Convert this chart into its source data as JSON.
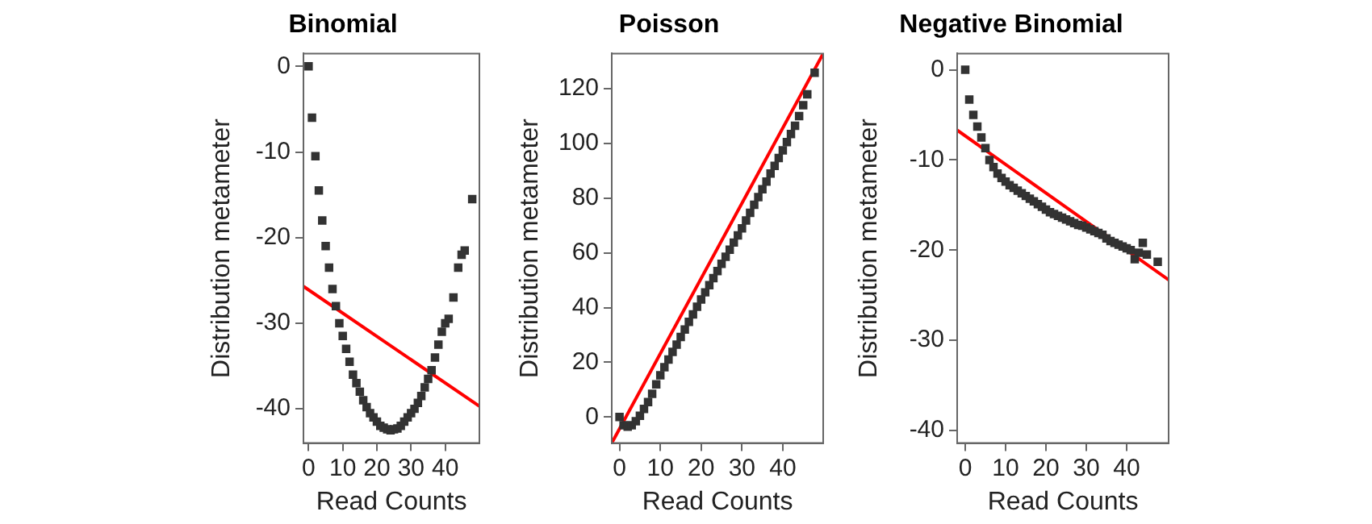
{
  "chart_data": [
    {
      "type": "scatter",
      "title": "Binomial",
      "xlabel": "Read Counts",
      "ylabel": "Distribution metameter",
      "xlim": [
        -1.5,
        50
      ],
      "xticks": [
        0,
        10,
        20,
        30,
        40
      ],
      "ylim": [
        -44,
        1.5
      ],
      "yticks": [
        -40,
        -30,
        -20,
        -10,
        0
      ],
      "grid": false,
      "series": [
        {
          "marker": "square",
          "color": "#333333",
          "x": [
            0,
            1,
            2,
            3,
            4,
            5,
            6,
            7,
            8,
            9,
            10,
            11,
            12,
            13,
            14,
            15,
            16,
            17,
            18,
            19,
            20,
            21,
            22,
            23,
            24,
            25,
            26,
            27,
            28,
            29,
            30,
            31,
            32,
            33,
            34,
            35,
            36,
            37,
            38,
            39,
            40,
            41,
            42.4,
            43.8,
            44.8,
            45.7,
            47.9
          ],
          "values": [
            0,
            -6,
            -10.5,
            -14.5,
            -18,
            -21,
            -23.5,
            -26,
            -28,
            -30,
            -31.5,
            -33,
            -34.5,
            -36,
            -37,
            -38,
            -39,
            -39.8,
            -40.5,
            -41,
            -41.5,
            -42,
            -42.2,
            -42.4,
            -42.5,
            -42.4,
            -42.3,
            -42,
            -41.5,
            -41,
            -40.5,
            -40,
            -39.3,
            -38.5,
            -37.5,
            -36.5,
            -35.5,
            -34,
            -32.5,
            -31,
            -30,
            -29.5,
            -27,
            -23.5,
            -22,
            -21.5,
            -15.5
          ]
        },
        {
          "type": "line",
          "color": "#ff0000",
          "x": [
            -1.5,
            50
          ],
          "values": [
            -25.7,
            -39.7
          ]
        }
      ]
    },
    {
      "type": "scatter",
      "title": "Poisson",
      "xlabel": "Read Counts",
      "ylabel": "Distribution metameter",
      "xlim": [
        -1.9,
        49.9
      ],
      "xticks": [
        0,
        10,
        20,
        30,
        40
      ],
      "ylim": [
        -9.5,
        132.9
      ],
      "yticks": [
        0,
        20,
        40,
        60,
        80,
        100,
        120
      ],
      "grid": false,
      "series": [
        {
          "marker": "square",
          "color": "#333333",
          "x": [
            0,
            1,
            2,
            3,
            4,
            5,
            6,
            7,
            8,
            9,
            10,
            11,
            12,
            13,
            14,
            15,
            16,
            17,
            18,
            19,
            20,
            21,
            22,
            23,
            24,
            25,
            26,
            27,
            28,
            29,
            30,
            31,
            32,
            33,
            34,
            35,
            36,
            37,
            38,
            39,
            40,
            41,
            42,
            43,
            44,
            45,
            46,
            47.8
          ],
          "values": [
            0,
            -3,
            -3.5,
            -3,
            -1.5,
            0.5,
            3,
            5.5,
            8.5,
            12,
            15.3,
            18.2,
            21,
            23.8,
            26.5,
            29.3,
            32,
            34.8,
            37.5,
            40.3,
            43,
            45.6,
            48.2,
            50.8,
            53.4,
            56,
            58.6,
            61.2,
            63.8,
            66.4,
            69,
            71.9,
            74.7,
            77.6,
            80.4,
            83.3,
            86.1,
            89,
            91.8,
            94.7,
            97.5,
            100.5,
            103.5,
            106.5,
            110,
            114,
            118,
            125.9
          ]
        },
        {
          "type": "line",
          "color": "#ff0000",
          "x": [
            -1.9,
            49.9
          ],
          "values": [
            -9.5,
            132.9
          ]
        }
      ]
    },
    {
      "type": "scatter",
      "title": "Negative Binomial",
      "xlabel": "Read Counts",
      "ylabel": "Distribution metameter",
      "xlim": [
        -2,
        50.4
      ],
      "xticks": [
        0,
        10,
        20,
        30,
        40
      ],
      "ylim": [
        -41.4,
        1.8
      ],
      "yticks": [
        -40,
        -30,
        -20,
        -10,
        0
      ],
      "grid": false,
      "series": [
        {
          "marker": "square",
          "color": "#333333",
          "x": [
            0,
            1,
            2,
            3,
            4,
            5,
            6,
            7,
            8,
            9,
            10,
            11,
            12,
            13,
            14,
            15,
            16,
            17,
            18,
            19,
            20,
            21,
            22,
            23,
            24,
            25,
            26,
            27,
            28,
            29,
            30,
            31,
            32,
            33,
            34,
            35,
            36,
            37,
            38,
            39,
            40,
            41,
            42,
            43,
            44,
            45,
            47.7
          ],
          "values": [
            0,
            -3.3,
            -5,
            -6.3,
            -7.5,
            -8.7,
            -10,
            -10.8,
            -11.5,
            -12,
            -12.4,
            -12.8,
            -13.1,
            -13.4,
            -13.7,
            -14,
            -14.3,
            -14.6,
            -14.9,
            -15.2,
            -15.5,
            -15.8,
            -16,
            -16.2,
            -16.4,
            -16.6,
            -16.8,
            -17,
            -17.2,
            -17.3,
            -17.5,
            -17.7,
            -17.9,
            -18.1,
            -18.3,
            -18.7,
            -19,
            -19.2,
            -19.4,
            -19.6,
            -19.8,
            -20,
            -21,
            -20.3,
            -19.2,
            -20.5,
            -21.3
          ]
        },
        {
          "type": "line",
          "color": "#ff0000",
          "x": [
            -2,
            50.4
          ],
          "values": [
            -6.7,
            -23.3
          ]
        }
      ]
    }
  ]
}
